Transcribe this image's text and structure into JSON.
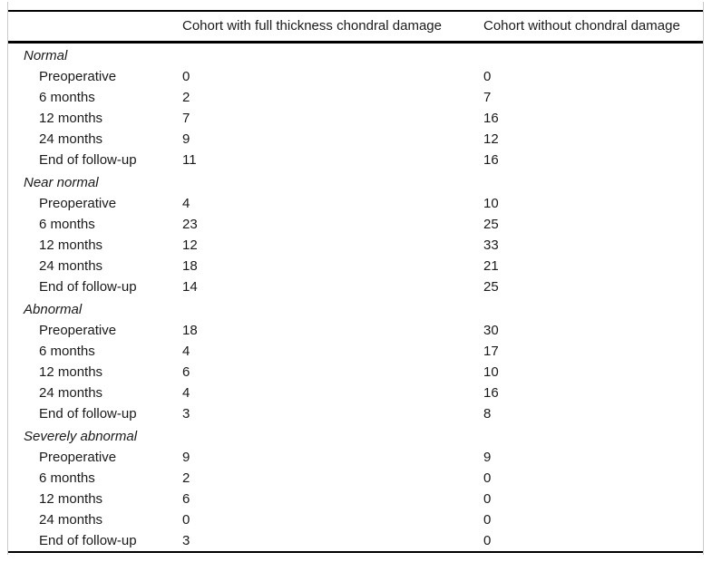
{
  "chart_data": {
    "type": "table",
    "columns": [
      "",
      "Cohort with full thickness chondral damage",
      "Cohort without chondral damage"
    ],
    "sections": [
      {
        "label": "Normal",
        "rows": [
          {
            "label": "Preoperative",
            "values": [
              "0",
              "0"
            ]
          },
          {
            "label": "6 months",
            "values": [
              "2",
              "7"
            ]
          },
          {
            "label": "12 months",
            "values": [
              "7",
              "16"
            ]
          },
          {
            "label": "24 months",
            "values": [
              "9",
              "12"
            ]
          },
          {
            "label": "End of follow-up",
            "values": [
              "11",
              "16"
            ]
          }
        ]
      },
      {
        "label": "Near normal",
        "rows": [
          {
            "label": "Preoperative",
            "values": [
              "4",
              "10"
            ]
          },
          {
            "label": "6 months",
            "values": [
              "23",
              "25"
            ]
          },
          {
            "label": "12 months",
            "values": [
              "12",
              "33"
            ]
          },
          {
            "label": "24 months",
            "values": [
              "18",
              "21"
            ]
          },
          {
            "label": "End of follow-up",
            "values": [
              "14",
              "25"
            ]
          }
        ]
      },
      {
        "label": "Abnormal",
        "rows": [
          {
            "label": "Preoperative",
            "values": [
              "18",
              "30"
            ]
          },
          {
            "label": "6 months",
            "values": [
              "4",
              "17"
            ]
          },
          {
            "label": "12 months",
            "values": [
              "6",
              "10"
            ]
          },
          {
            "label": "24 months",
            "values": [
              "4",
              "16"
            ]
          },
          {
            "label": "End of follow-up",
            "values": [
              "3",
              "8"
            ]
          }
        ]
      },
      {
        "label": "Severely abnormal",
        "rows": [
          {
            "label": "Preoperative",
            "values": [
              "9",
              "9"
            ]
          },
          {
            "label": "6 months",
            "values": [
              "2",
              "0"
            ]
          },
          {
            "label": "12 months",
            "values": [
              "6",
              "0"
            ]
          },
          {
            "label": "24 months",
            "values": [
              "0",
              "0"
            ]
          },
          {
            "label": "End of follow-up",
            "values": [
              "3",
              "0"
            ]
          }
        ]
      }
    ],
    "layout": {
      "grid": "horizontal-rules-only",
      "text_color": "#1a1a1a",
      "rule_color": "#000000",
      "frame_color": "#c9c9c9"
    }
  }
}
